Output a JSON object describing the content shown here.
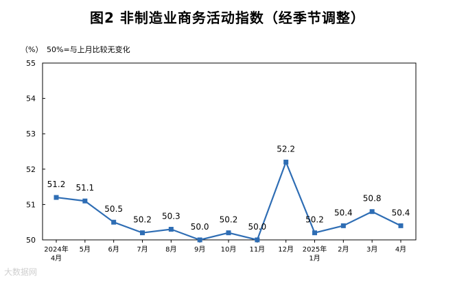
{
  "chart_data": {
    "type": "line",
    "title": "图2  非制造业商务活动指数（经季节调整）",
    "unit_label": "（%）",
    "annotation": "50%=与上月比较无变化",
    "categories": [
      "2024年\n4月",
      "5月",
      "6月",
      "7月",
      "8月",
      "9月",
      "10月",
      "11月",
      "12月",
      "2025年\n1月",
      "2月",
      "3月",
      "4月"
    ],
    "series": [
      {
        "values": [
          51.2,
          51.1,
          50.5,
          50.2,
          50.3,
          50.0,
          50.2,
          50.0,
          52.2,
          50.2,
          50.4,
          50.8,
          50.4
        ]
      }
    ],
    "data_labels": [
      "51.2",
      "51.1",
      "50.5",
      "50.2",
      "50.3",
      "50.0",
      "50.2",
      "50.0",
      "52.2",
      "50.2",
      "50.4",
      "50.8",
      "50.4"
    ],
    "yticks": [
      "50",
      "51",
      "52",
      "53",
      "54",
      "55"
    ],
    "ylim": [
      50,
      55
    ],
    "grid": false,
    "line_color": "#2E6DB4"
  },
  "watermark": "大数据网"
}
